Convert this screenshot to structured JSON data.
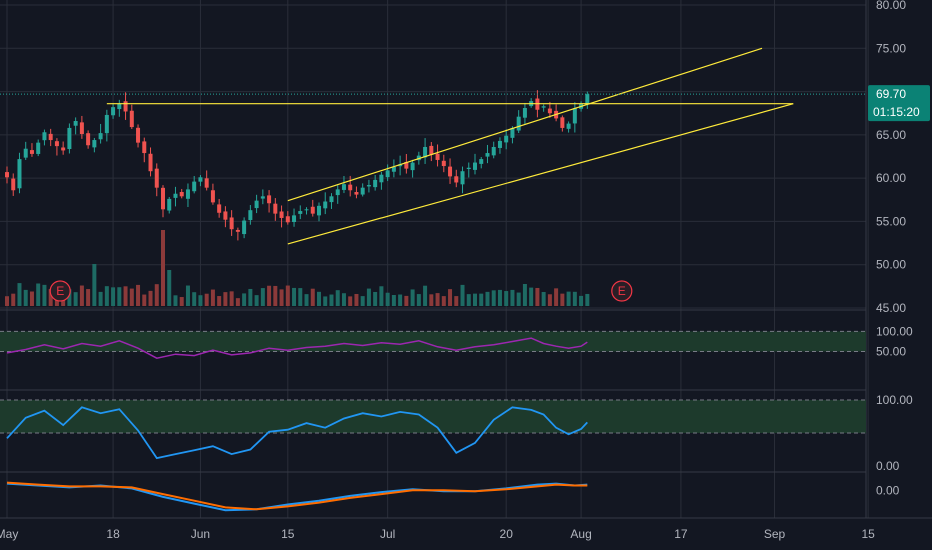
{
  "colors": {
    "bg": "#131722",
    "up": "#26a69a",
    "down": "#ef5350",
    "volume_up": "#1e6b64",
    "volume_down": "#8c3a3a",
    "trendline": "#ffeb3b",
    "rsi": "#9c27b0",
    "stoch": "#2196f3",
    "macd": "#2196f3",
    "signal": "#ff6d00",
    "band": "#1d3a2c",
    "price_tag": "#0b8275",
    "grid": "#2a2e39",
    "earnings": "#f23645"
  },
  "price_tag": {
    "price": "69.70",
    "countdown": "01:15:20"
  },
  "earnings_label": "E",
  "chart_data": [
    {
      "type": "candlestick",
      "panel": "price",
      "y_ticks": [
        "80.00",
        "75.00",
        "70.00",
        "65.00",
        "60.00",
        "55.00",
        "50.00",
        "45.00"
      ],
      "ylim": [
        45,
        80
      ],
      "x_ticks": [
        "May",
        "18",
        "Jun",
        "15",
        "Jul",
        "20",
        "Aug",
        "17",
        "Sep",
        "15"
      ],
      "x_tick_days": [
        0,
        17,
        31,
        45,
        61,
        80,
        92,
        108,
        123,
        138
      ],
      "last_price": 69.7,
      "closes": [
        [
          0,
          60.1
        ],
        [
          1,
          58.6
        ],
        [
          2,
          62.2
        ],
        [
          3,
          63.4
        ],
        [
          4,
          62.8
        ],
        [
          5,
          64.1
        ],
        [
          6,
          65.3
        ],
        [
          7,
          64.4
        ],
        [
          8,
          63.7
        ],
        [
          9,
          63.2
        ],
        [
          10,
          65.8
        ],
        [
          11,
          66.6
        ],
        [
          12,
          65.1
        ],
        [
          13,
          63.8
        ],
        [
          14,
          64.4
        ],
        [
          15,
          65.2
        ],
        [
          16,
          67.3
        ],
        [
          17,
          68.2
        ],
        [
          18,
          68.6
        ],
        [
          19,
          67.7
        ],
        [
          20,
          65.9
        ],
        [
          21,
          64.1
        ],
        [
          22,
          62.9
        ],
        [
          23,
          60.8
        ],
        [
          24,
          58.9
        ],
        [
          25,
          56.4
        ],
        [
          26,
          57.6
        ],
        [
          27,
          58.2
        ],
        [
          28,
          57.9
        ],
        [
          29,
          58.7
        ],
        [
          30,
          59.6
        ],
        [
          31,
          60.1
        ],
        [
          32,
          58.9
        ],
        [
          33,
          57.2
        ],
        [
          34,
          56.0
        ],
        [
          35,
          55.2
        ],
        [
          36,
          54.1
        ],
        [
          37,
          53.8
        ],
        [
          38,
          55.1
        ],
        [
          39,
          56.3
        ],
        [
          40,
          57.4
        ],
        [
          41,
          57.9
        ],
        [
          42,
          57.1
        ],
        [
          43,
          55.9
        ],
        [
          44,
          55.4
        ],
        [
          45,
          54.9
        ],
        [
          46,
          55.7
        ],
        [
          47,
          56.2
        ],
        [
          48,
          56.4
        ],
        [
          49,
          55.9
        ],
        [
          50,
          56.8
        ],
        [
          51,
          57.3
        ],
        [
          52,
          57.9
        ],
        [
          53,
          58.7
        ],
        [
          54,
          59.3
        ],
        [
          55,
          58.6
        ],
        [
          56,
          58.1
        ],
        [
          57,
          58.9
        ],
        [
          58,
          59.2
        ],
        [
          59,
          59.8
        ],
        [
          60,
          60.4
        ],
        [
          61,
          60.9
        ],
        [
          62,
          61.3
        ],
        [
          63,
          61.6
        ],
        [
          64,
          61.1
        ],
        [
          65,
          61.8
        ],
        [
          66,
          62.6
        ],
        [
          67,
          63.6
        ],
        [
          68,
          62.7
        ],
        [
          69,
          62.1
        ],
        [
          70,
          61.4
        ],
        [
          71,
          60.2
        ],
        [
          72,
          59.5
        ],
        [
          73,
          60.8
        ],
        [
          74,
          61.2
        ],
        [
          75,
          61.8
        ],
        [
          76,
          62.2
        ],
        [
          77,
          62.9
        ],
        [
          78,
          63.6
        ],
        [
          79,
          64.3
        ],
        [
          80,
          64.9
        ],
        [
          81,
          65.8
        ],
        [
          82,
          67.1
        ],
        [
          83,
          68.1
        ],
        [
          84,
          68.9
        ],
        [
          85,
          67.9
        ],
        [
          86,
          68.3
        ],
        [
          87,
          67.5
        ],
        [
          88,
          66.9
        ],
        [
          89,
          65.8
        ],
        [
          90,
          66.3
        ],
        [
          91,
          68.1
        ],
        [
          92,
          68.6
        ],
        [
          93,
          69.7
        ]
      ],
      "trendlines": [
        {
          "from": [
            16,
            68.6
          ],
          "to": [
            126,
            68.6
          ]
        },
        {
          "from": [
            45,
            52.4
          ],
          "to": [
            126,
            68.6
          ]
        },
        {
          "from": [
            45,
            57.4
          ],
          "to": [
            121,
            75.0
          ]
        }
      ]
    },
    {
      "type": "bar",
      "panel": "volume",
      "earnings_markers_days": [
        5,
        95
      ]
    },
    {
      "type": "line",
      "panel": "rsi",
      "y_ticks": [
        "100.00",
        "50.00"
      ],
      "ylim": [
        15,
        100
      ],
      "band": [
        50,
        80
      ],
      "series": [
        {
          "values": [
            [
              0,
              48
            ],
            [
              3,
              53
            ],
            [
              6,
              60
            ],
            [
              9,
              54
            ],
            [
              12,
              62
            ],
            [
              15,
              58
            ],
            [
              18,
              66
            ],
            [
              21,
              55
            ],
            [
              24,
              40
            ],
            [
              27,
              46
            ],
            [
              30,
              44
            ],
            [
              33,
              52
            ],
            [
              36,
              45
            ],
            [
              39,
              48
            ],
            [
              42,
              55
            ],
            [
              45,
              52
            ],
            [
              48,
              56
            ],
            [
              51,
              58
            ],
            [
              54,
              62
            ],
            [
              57,
              59
            ],
            [
              60,
              63
            ],
            [
              63,
              61
            ],
            [
              66,
              66
            ],
            [
              69,
              57
            ],
            [
              72,
              52
            ],
            [
              75,
              57
            ],
            [
              78,
              60
            ],
            [
              81,
              65
            ],
            [
              84,
              70
            ],
            [
              86,
              62
            ],
            [
              88,
              58
            ],
            [
              90,
              55
            ],
            [
              92,
              58
            ],
            [
              93,
              64
            ]
          ]
        }
      ]
    },
    {
      "type": "line",
      "panel": "stoch",
      "y_ticks": [
        "100.00",
        "0.00"
      ],
      "ylim": [
        0,
        100
      ],
      "band": [
        50,
        100
      ],
      "series": [
        {
          "values": [
            [
              0,
              42
            ],
            [
              3,
              73
            ],
            [
              6,
              84
            ],
            [
              9,
              62
            ],
            [
              12,
              89
            ],
            [
              15,
              80
            ],
            [
              18,
              86
            ],
            [
              21,
              54
            ],
            [
              24,
              12
            ],
            [
              27,
              18
            ],
            [
              30,
              24
            ],
            [
              33,
              30
            ],
            [
              36,
              18
            ],
            [
              39,
              25
            ],
            [
              42,
              52
            ],
            [
              45,
              55
            ],
            [
              48,
              65
            ],
            [
              51,
              58
            ],
            [
              54,
              72
            ],
            [
              57,
              80
            ],
            [
              60,
              75
            ],
            [
              63,
              82
            ],
            [
              66,
              78
            ],
            [
              69,
              58
            ],
            [
              72,
              20
            ],
            [
              75,
              35
            ],
            [
              78,
              70
            ],
            [
              81,
              89
            ],
            [
              84,
              85
            ],
            [
              86,
              78
            ],
            [
              88,
              58
            ],
            [
              90,
              48
            ],
            [
              92,
              56
            ],
            [
              93,
              66
            ]
          ]
        }
      ]
    },
    {
      "type": "line",
      "panel": "macd",
      "y_ticks": [
        "0.00"
      ],
      "ylim": [
        -2.5,
        1.5
      ],
      "series": [
        {
          "values": [
            [
              0,
              0.7
            ],
            [
              5,
              0.5
            ],
            [
              10,
              0.3
            ],
            [
              15,
              0.5
            ],
            [
              20,
              0.2
            ],
            [
              25,
              -0.7
            ],
            [
              30,
              -1.4
            ],
            [
              35,
              -2.1
            ],
            [
              40,
              -2.0
            ],
            [
              45,
              -1.5
            ],
            [
              50,
              -1.1
            ],
            [
              55,
              -0.6
            ],
            [
              60,
              -0.2
            ],
            [
              65,
              0.1
            ],
            [
              70,
              -0.1
            ],
            [
              75,
              -0.1
            ],
            [
              80,
              0.2
            ],
            [
              85,
              0.6
            ],
            [
              88,
              0.7
            ],
            [
              91,
              0.5
            ],
            [
              93,
              0.6
            ]
          ]
        },
        {
          "values": [
            [
              0,
              0.8
            ],
            [
              5,
              0.6
            ],
            [
              10,
              0.4
            ],
            [
              15,
              0.4
            ],
            [
              20,
              0.3
            ],
            [
              25,
              -0.4
            ],
            [
              30,
              -1.1
            ],
            [
              35,
              -1.8
            ],
            [
              40,
              -2.0
            ],
            [
              45,
              -1.7
            ],
            [
              50,
              -1.3
            ],
            [
              55,
              -0.8
            ],
            [
              60,
              -0.4
            ],
            [
              65,
              0.0
            ],
            [
              70,
              0.0
            ],
            [
              75,
              -0.1
            ],
            [
              80,
              0.1
            ],
            [
              85,
              0.4
            ],
            [
              88,
              0.6
            ],
            [
              91,
              0.5
            ],
            [
              93,
              0.5
            ]
          ]
        }
      ]
    }
  ]
}
